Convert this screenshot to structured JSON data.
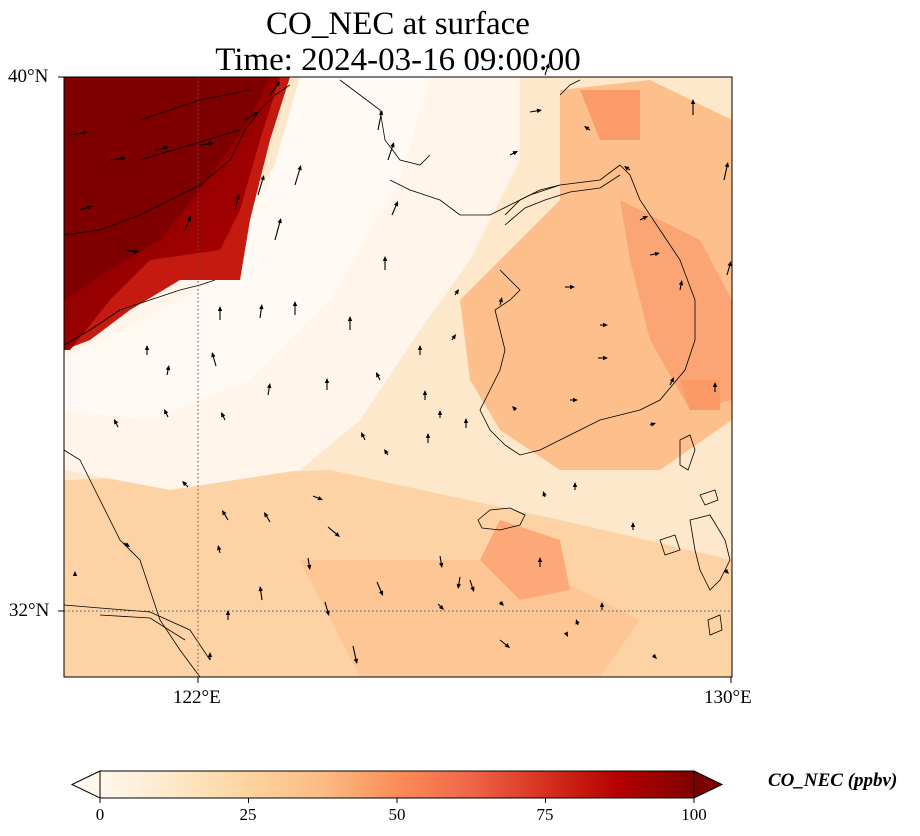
{
  "title": {
    "line1": "CO_NEC at surface",
    "line2": "Time: 2024-03-16 09:00:00"
  },
  "map": {
    "projection": "PlateCarree",
    "lon_range_deg": [
      120.4,
      130.0
    ],
    "lat_range_deg": [
      31.0,
      40.0
    ],
    "gridlines": {
      "style": "dotted",
      "lons": [
        122
      ],
      "lats": [
        32
      ]
    },
    "x_tick_labels": [
      "122°E",
      "130°E"
    ],
    "y_tick_labels": [
      "40°N",
      "32°N"
    ],
    "coastline_color": "#000000",
    "field": "CO_NEC (ppbv) at surface — high (>100) over the Shandong/Liaoning NW corner, moderate (35–60) over Korea and south Yellow Sea, low (5–15) over central Yellow Sea",
    "wind_vectors": "black quiver arrows, mostly northward / north-westward flow"
  },
  "colorbar": {
    "label": "CO_NEC (ppbv)",
    "colormap": "OrRd",
    "range": [
      0,
      100
    ],
    "extend": "both",
    "ticks": [
      "0",
      "25",
      "50",
      "75",
      "100"
    ],
    "colors": [
      "#fff7ec",
      "#fee8c8",
      "#fdd49e",
      "#fdbb84",
      "#fc8d59",
      "#ef6548",
      "#d7301f",
      "#b30000",
      "#7f0000"
    ]
  }
}
